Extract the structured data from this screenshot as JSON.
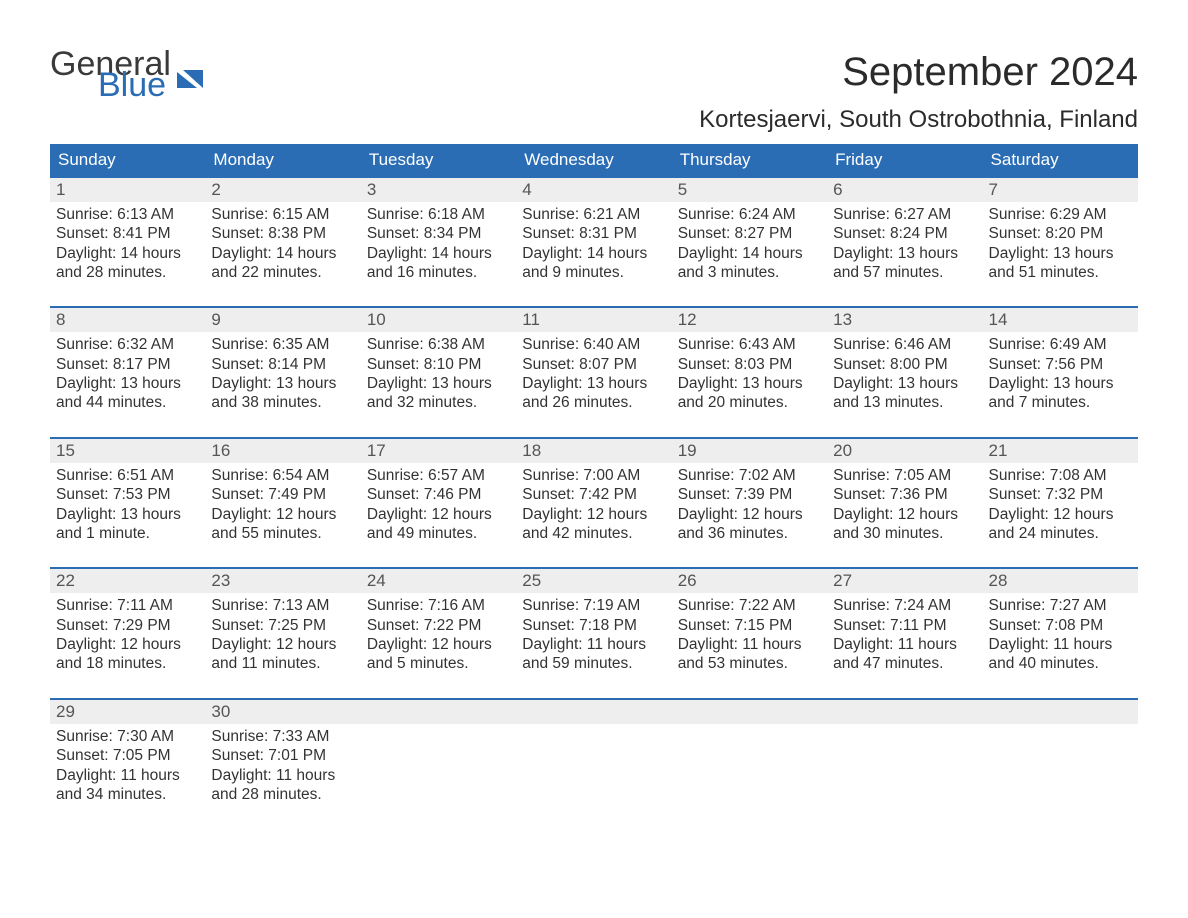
{
  "logo": {
    "text_top": "General",
    "text_bottom": "Blue",
    "top_color": "#3a3a3a",
    "bottom_color": "#2a6db5",
    "mark_color": "#2a6db5"
  },
  "title": "September 2024",
  "subtitle": "Kortesjaervi, South Ostrobothnia, Finland",
  "colors": {
    "header_bg": "#2a6db5",
    "header_text": "#ffffff",
    "daynum_bg": "#eeeeee",
    "daynum_text": "#555555",
    "body_text": "#333333",
    "separator": "#2a6db5",
    "page_bg": "#ffffff"
  },
  "typography": {
    "title_fontsize": 40,
    "subtitle_fontsize": 24,
    "header_fontsize": 17,
    "daynum_fontsize": 17,
    "body_fontsize": 15.5,
    "font_family": "Arial"
  },
  "layout": {
    "columns": 7,
    "rows": 5,
    "total_days": 30,
    "first_weekday_index": 0
  },
  "weekdays": [
    "Sunday",
    "Monday",
    "Tuesday",
    "Wednesday",
    "Thursday",
    "Friday",
    "Saturday"
  ],
  "days": [
    {
      "n": "1",
      "sunrise": "Sunrise: 6:13 AM",
      "sunset": "Sunset: 8:41 PM",
      "day1": "Daylight: 14 hours",
      "day2": "and 28 minutes."
    },
    {
      "n": "2",
      "sunrise": "Sunrise: 6:15 AM",
      "sunset": "Sunset: 8:38 PM",
      "day1": "Daylight: 14 hours",
      "day2": "and 22 minutes."
    },
    {
      "n": "3",
      "sunrise": "Sunrise: 6:18 AM",
      "sunset": "Sunset: 8:34 PM",
      "day1": "Daylight: 14 hours",
      "day2": "and 16 minutes."
    },
    {
      "n": "4",
      "sunrise": "Sunrise: 6:21 AM",
      "sunset": "Sunset: 8:31 PM",
      "day1": "Daylight: 14 hours",
      "day2": "and 9 minutes."
    },
    {
      "n": "5",
      "sunrise": "Sunrise: 6:24 AM",
      "sunset": "Sunset: 8:27 PM",
      "day1": "Daylight: 14 hours",
      "day2": "and 3 minutes."
    },
    {
      "n": "6",
      "sunrise": "Sunrise: 6:27 AM",
      "sunset": "Sunset: 8:24 PM",
      "day1": "Daylight: 13 hours",
      "day2": "and 57 minutes."
    },
    {
      "n": "7",
      "sunrise": "Sunrise: 6:29 AM",
      "sunset": "Sunset: 8:20 PM",
      "day1": "Daylight: 13 hours",
      "day2": "and 51 minutes."
    },
    {
      "n": "8",
      "sunrise": "Sunrise: 6:32 AM",
      "sunset": "Sunset: 8:17 PM",
      "day1": "Daylight: 13 hours",
      "day2": "and 44 minutes."
    },
    {
      "n": "9",
      "sunrise": "Sunrise: 6:35 AM",
      "sunset": "Sunset: 8:14 PM",
      "day1": "Daylight: 13 hours",
      "day2": "and 38 minutes."
    },
    {
      "n": "10",
      "sunrise": "Sunrise: 6:38 AM",
      "sunset": "Sunset: 8:10 PM",
      "day1": "Daylight: 13 hours",
      "day2": "and 32 minutes."
    },
    {
      "n": "11",
      "sunrise": "Sunrise: 6:40 AM",
      "sunset": "Sunset: 8:07 PM",
      "day1": "Daylight: 13 hours",
      "day2": "and 26 minutes."
    },
    {
      "n": "12",
      "sunrise": "Sunrise: 6:43 AM",
      "sunset": "Sunset: 8:03 PM",
      "day1": "Daylight: 13 hours",
      "day2": "and 20 minutes."
    },
    {
      "n": "13",
      "sunrise": "Sunrise: 6:46 AM",
      "sunset": "Sunset: 8:00 PM",
      "day1": "Daylight: 13 hours",
      "day2": "and 13 minutes."
    },
    {
      "n": "14",
      "sunrise": "Sunrise: 6:49 AM",
      "sunset": "Sunset: 7:56 PM",
      "day1": "Daylight: 13 hours",
      "day2": "and 7 minutes."
    },
    {
      "n": "15",
      "sunrise": "Sunrise: 6:51 AM",
      "sunset": "Sunset: 7:53 PM",
      "day1": "Daylight: 13 hours",
      "day2": "and 1 minute."
    },
    {
      "n": "16",
      "sunrise": "Sunrise: 6:54 AM",
      "sunset": "Sunset: 7:49 PM",
      "day1": "Daylight: 12 hours",
      "day2": "and 55 minutes."
    },
    {
      "n": "17",
      "sunrise": "Sunrise: 6:57 AM",
      "sunset": "Sunset: 7:46 PM",
      "day1": "Daylight: 12 hours",
      "day2": "and 49 minutes."
    },
    {
      "n": "18",
      "sunrise": "Sunrise: 7:00 AM",
      "sunset": "Sunset: 7:42 PM",
      "day1": "Daylight: 12 hours",
      "day2": "and 42 minutes."
    },
    {
      "n": "19",
      "sunrise": "Sunrise: 7:02 AM",
      "sunset": "Sunset: 7:39 PM",
      "day1": "Daylight: 12 hours",
      "day2": "and 36 minutes."
    },
    {
      "n": "20",
      "sunrise": "Sunrise: 7:05 AM",
      "sunset": "Sunset: 7:36 PM",
      "day1": "Daylight: 12 hours",
      "day2": "and 30 minutes."
    },
    {
      "n": "21",
      "sunrise": "Sunrise: 7:08 AM",
      "sunset": "Sunset: 7:32 PM",
      "day1": "Daylight: 12 hours",
      "day2": "and 24 minutes."
    },
    {
      "n": "22",
      "sunrise": "Sunrise: 7:11 AM",
      "sunset": "Sunset: 7:29 PM",
      "day1": "Daylight: 12 hours",
      "day2": "and 18 minutes."
    },
    {
      "n": "23",
      "sunrise": "Sunrise: 7:13 AM",
      "sunset": "Sunset: 7:25 PM",
      "day1": "Daylight: 12 hours",
      "day2": "and 11 minutes."
    },
    {
      "n": "24",
      "sunrise": "Sunrise: 7:16 AM",
      "sunset": "Sunset: 7:22 PM",
      "day1": "Daylight: 12 hours",
      "day2": "and 5 minutes."
    },
    {
      "n": "25",
      "sunrise": "Sunrise: 7:19 AM",
      "sunset": "Sunset: 7:18 PM",
      "day1": "Daylight: 11 hours",
      "day2": "and 59 minutes."
    },
    {
      "n": "26",
      "sunrise": "Sunrise: 7:22 AM",
      "sunset": "Sunset: 7:15 PM",
      "day1": "Daylight: 11 hours",
      "day2": "and 53 minutes."
    },
    {
      "n": "27",
      "sunrise": "Sunrise: 7:24 AM",
      "sunset": "Sunset: 7:11 PM",
      "day1": "Daylight: 11 hours",
      "day2": "and 47 minutes."
    },
    {
      "n": "28",
      "sunrise": "Sunrise: 7:27 AM",
      "sunset": "Sunset: 7:08 PM",
      "day1": "Daylight: 11 hours",
      "day2": "and 40 minutes."
    },
    {
      "n": "29",
      "sunrise": "Sunrise: 7:30 AM",
      "sunset": "Sunset: 7:05 PM",
      "day1": "Daylight: 11 hours",
      "day2": "and 34 minutes."
    },
    {
      "n": "30",
      "sunrise": "Sunrise: 7:33 AM",
      "sunset": "Sunset: 7:01 PM",
      "day1": "Daylight: 11 hours",
      "day2": "and 28 minutes."
    }
  ]
}
